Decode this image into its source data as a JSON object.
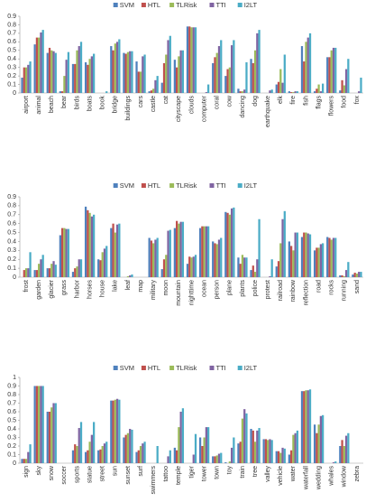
{
  "chart_data": [
    {
      "type": "bar",
      "ylim": [
        0,
        0.9
      ],
      "yticks": [
        0,
        0.1,
        0.2,
        0.3,
        0.4,
        0.5,
        0.6,
        0.7,
        0.8,
        0.9
      ],
      "categories": [
        "airport",
        "animal",
        "beach",
        "bear",
        "birds",
        "boats",
        "book",
        "bridge",
        "buildings",
        "cars",
        "castle",
        "cat",
        "cityscape",
        "clouds",
        "computer",
        "coral",
        "cow",
        "dancing",
        "dog",
        "earthquake",
        "elk",
        "fire",
        "fish",
        "flags",
        "flowers",
        "food",
        "fox"
      ],
      "series": [
        {
          "name": "SVM",
          "color": "#4f81bd",
          "values": [
            0.18,
            0.57,
            0.47,
            0.02,
            0.34,
            0.36,
            0,
            0.55,
            0.47,
            0.37,
            0.02,
            0.12,
            0.39,
            0.78,
            0,
            0.35,
            0.2,
            0.05,
            0.4,
            0,
            0.1,
            0.02,
            0.55,
            0.02,
            0.42,
            0.03,
            0
          ]
        },
        {
          "name": "HTL",
          "color": "#c0504d",
          "values": [
            0.3,
            0.65,
            0.53,
            0.02,
            0.34,
            0.33,
            0,
            0.5,
            0.46,
            0.25,
            0.03,
            0.35,
            0.3,
            0.78,
            0,
            0.42,
            0.28,
            0.02,
            0.35,
            0,
            0.13,
            0.01,
            0.37,
            0.05,
            0.42,
            0.15,
            0
          ]
        },
        {
          "name": "TLRisk",
          "color": "#9bbb59",
          "values": [
            0.3,
            0.65,
            0.5,
            0.2,
            0.5,
            0.4,
            0,
            0.58,
            0.48,
            0.25,
            0.05,
            0.45,
            0.43,
            0.77,
            0,
            0.47,
            0.3,
            0.02,
            0.5,
            0,
            0.28,
            0.01,
            0.6,
            0.1,
            0.5,
            0.09,
            0
          ]
        },
        {
          "name": "TTI",
          "color": "#8064a2",
          "values": [
            0.33,
            0.71,
            0.49,
            0.39,
            0.55,
            0.43,
            0,
            0.6,
            0.49,
            0.43,
            0.15,
            0.62,
            0.5,
            0.77,
            0.01,
            0.55,
            0.56,
            0.04,
            0.7,
            0.03,
            0.12,
            0.02,
            0.65,
            0.02,
            0.53,
            0.28,
            0.02
          ]
        },
        {
          "name": "I2LT",
          "color": "#4bacc6",
          "values": [
            0.37,
            0.74,
            0.47,
            0.48,
            0.6,
            0.46,
            0.02,
            0.63,
            0.49,
            0.45,
            0.2,
            0.67,
            0.5,
            0.77,
            0.1,
            0.62,
            0.62,
            0.36,
            0.74,
            0.04,
            0.45,
            0.02,
            0.7,
            0.11,
            0.53,
            0.4,
            0.18
          ]
        }
      ]
    },
    {
      "type": "bar",
      "ylim": [
        0,
        0.9
      ],
      "yticks": [
        0,
        0.1,
        0.2,
        0.3,
        0.4,
        0.5,
        0.6,
        0.7,
        0.8,
        0.9
      ],
      "categories": [
        "frost",
        "garden",
        "glacier",
        "grass",
        "harbor",
        "horses",
        "house",
        "lake",
        "leaf",
        "map",
        "military",
        "moon",
        "mountain",
        "nighttime",
        "ocean",
        "person",
        "plane",
        "plants",
        "police",
        "protest",
        "railroad",
        "rainbow",
        "reflection",
        "road",
        "rocks",
        "running",
        "sand"
      ],
      "series": [
        {
          "name": "SVM",
          "color": "#4f81bd",
          "values": [
            0,
            0.08,
            0.1,
            0.47,
            0.06,
            0.79,
            0.2,
            0.55,
            0,
            0,
            0.44,
            0.09,
            0.55,
            0.15,
            0.55,
            0.4,
            0.73,
            0.22,
            0.08,
            0,
            0.12,
            0.4,
            0.45,
            0.3,
            0.45,
            0.02,
            0.03
          ]
        },
        {
          "name": "HTL",
          "color": "#c0504d",
          "values": [
            0.08,
            0.08,
            0.1,
            0.55,
            0.1,
            0.75,
            0.19,
            0.6,
            0,
            0,
            0.41,
            0.2,
            0.63,
            0.23,
            0.57,
            0.38,
            0.72,
            0.15,
            0.13,
            0,
            0.18,
            0.35,
            0.5,
            0.33,
            0.44,
            0.02,
            0.05
          ]
        },
        {
          "name": "TLRisk",
          "color": "#9bbb59",
          "values": [
            0.1,
            0.15,
            0.15,
            0.55,
            0.12,
            0.72,
            0.28,
            0.5,
            0.01,
            0,
            0.38,
            0.25,
            0.6,
            0.22,
            0.57,
            0.37,
            0.7,
            0.25,
            0.06,
            0,
            0.38,
            0.3,
            0.5,
            0.33,
            0.42,
            0.01,
            0.04
          ]
        },
        {
          "name": "TTI",
          "color": "#8064a2",
          "values": [
            0.1,
            0.2,
            0.18,
            0.54,
            0.2,
            0.68,
            0.32,
            0.59,
            0.02,
            0,
            0.42,
            0.52,
            0.62,
            0.23,
            0.57,
            0.42,
            0.77,
            0.22,
            0.2,
            0.01,
            0.65,
            0.5,
            0.49,
            0.37,
            0.44,
            0.08,
            0.06
          ]
        },
        {
          "name": "I2LT",
          "color": "#4bacc6",
          "values": [
            0.28,
            0.25,
            0.14,
            0.54,
            0.2,
            0.7,
            0.35,
            0.6,
            0.03,
            0,
            0.44,
            0.53,
            0.62,
            0.25,
            0.57,
            0.44,
            0.78,
            0.22,
            0.65,
            0.2,
            0.74,
            0.5,
            0.48,
            0.38,
            0.44,
            0.17,
            0.06
          ]
        }
      ]
    },
    {
      "type": "bar",
      "ylim": [
        0,
        1
      ],
      "yticks": [
        0,
        0.1,
        0.2,
        0.3,
        0.4,
        0.5,
        0.6,
        0.7,
        0.8,
        0.9,
        1
      ],
      "categories": [
        "sign",
        "sky",
        "snow",
        "soccer",
        "sports",
        "statue",
        "street",
        "sun",
        "sunset",
        "surf",
        "swimmers",
        "tattoo",
        "temple",
        "tiger",
        "tower",
        "town",
        "toy",
        "train",
        "tree",
        "valley",
        "vehicle",
        "water",
        "waterfall",
        "wedding",
        "whales",
        "window",
        "zebra"
      ],
      "series": [
        {
          "name": "SVM",
          "color": "#4f81bd",
          "values": [
            0.05,
            0.9,
            0.6,
            0,
            0.15,
            0.13,
            0.15,
            0.73,
            0.3,
            0.13,
            0,
            0,
            0.18,
            0,
            0.3,
            0.08,
            0.01,
            0.23,
            0.4,
            0.28,
            0.14,
            0.1,
            0.84,
            0.45,
            0,
            0.2,
            0
          ]
        },
        {
          "name": "HTL",
          "color": "#c0504d",
          "values": [
            0.05,
            0.9,
            0.6,
            0,
            0.22,
            0.15,
            0.16,
            0.73,
            0.33,
            0.15,
            0,
            0,
            0.15,
            0,
            0.2,
            0.08,
            0,
            0.25,
            0.38,
            0.28,
            0.14,
            0.15,
            0.84,
            0.35,
            0,
            0.27,
            0
          ]
        },
        {
          "name": "TLRisk",
          "color": "#9bbb59",
          "values": [
            0.05,
            0.9,
            0.65,
            0,
            0.2,
            0.25,
            0.2,
            0.74,
            0.35,
            0.2,
            0,
            0,
            0.42,
            0,
            0.3,
            0.09,
            0.02,
            0.52,
            0.25,
            0.27,
            0.12,
            0.33,
            0.85,
            0.45,
            0,
            0.2,
            0
          ]
        },
        {
          "name": "TTI",
          "color": "#8064a2",
          "values": [
            0.13,
            0.9,
            0.7,
            0,
            0.41,
            0.33,
            0.23,
            0.75,
            0.4,
            0.23,
            0,
            0.08,
            0.6,
            0.1,
            0.42,
            0.11,
            0.18,
            0.63,
            0.38,
            0.28,
            0.18,
            0.35,
            0.85,
            0.55,
            0.01,
            0.32,
            0
          ]
        },
        {
          "name": "I2LT",
          "color": "#4bacc6",
          "values": [
            0.22,
            0.9,
            0.7,
            0,
            0.48,
            0.48,
            0.25,
            0.74,
            0.39,
            0.25,
            0.2,
            0.15,
            0.64,
            0.34,
            0.42,
            0.12,
            0.3,
            0.58,
            0.41,
            0.27,
            0.17,
            0.38,
            0.86,
            0.56,
            0.02,
            0.35,
            0
          ]
        }
      ]
    }
  ]
}
